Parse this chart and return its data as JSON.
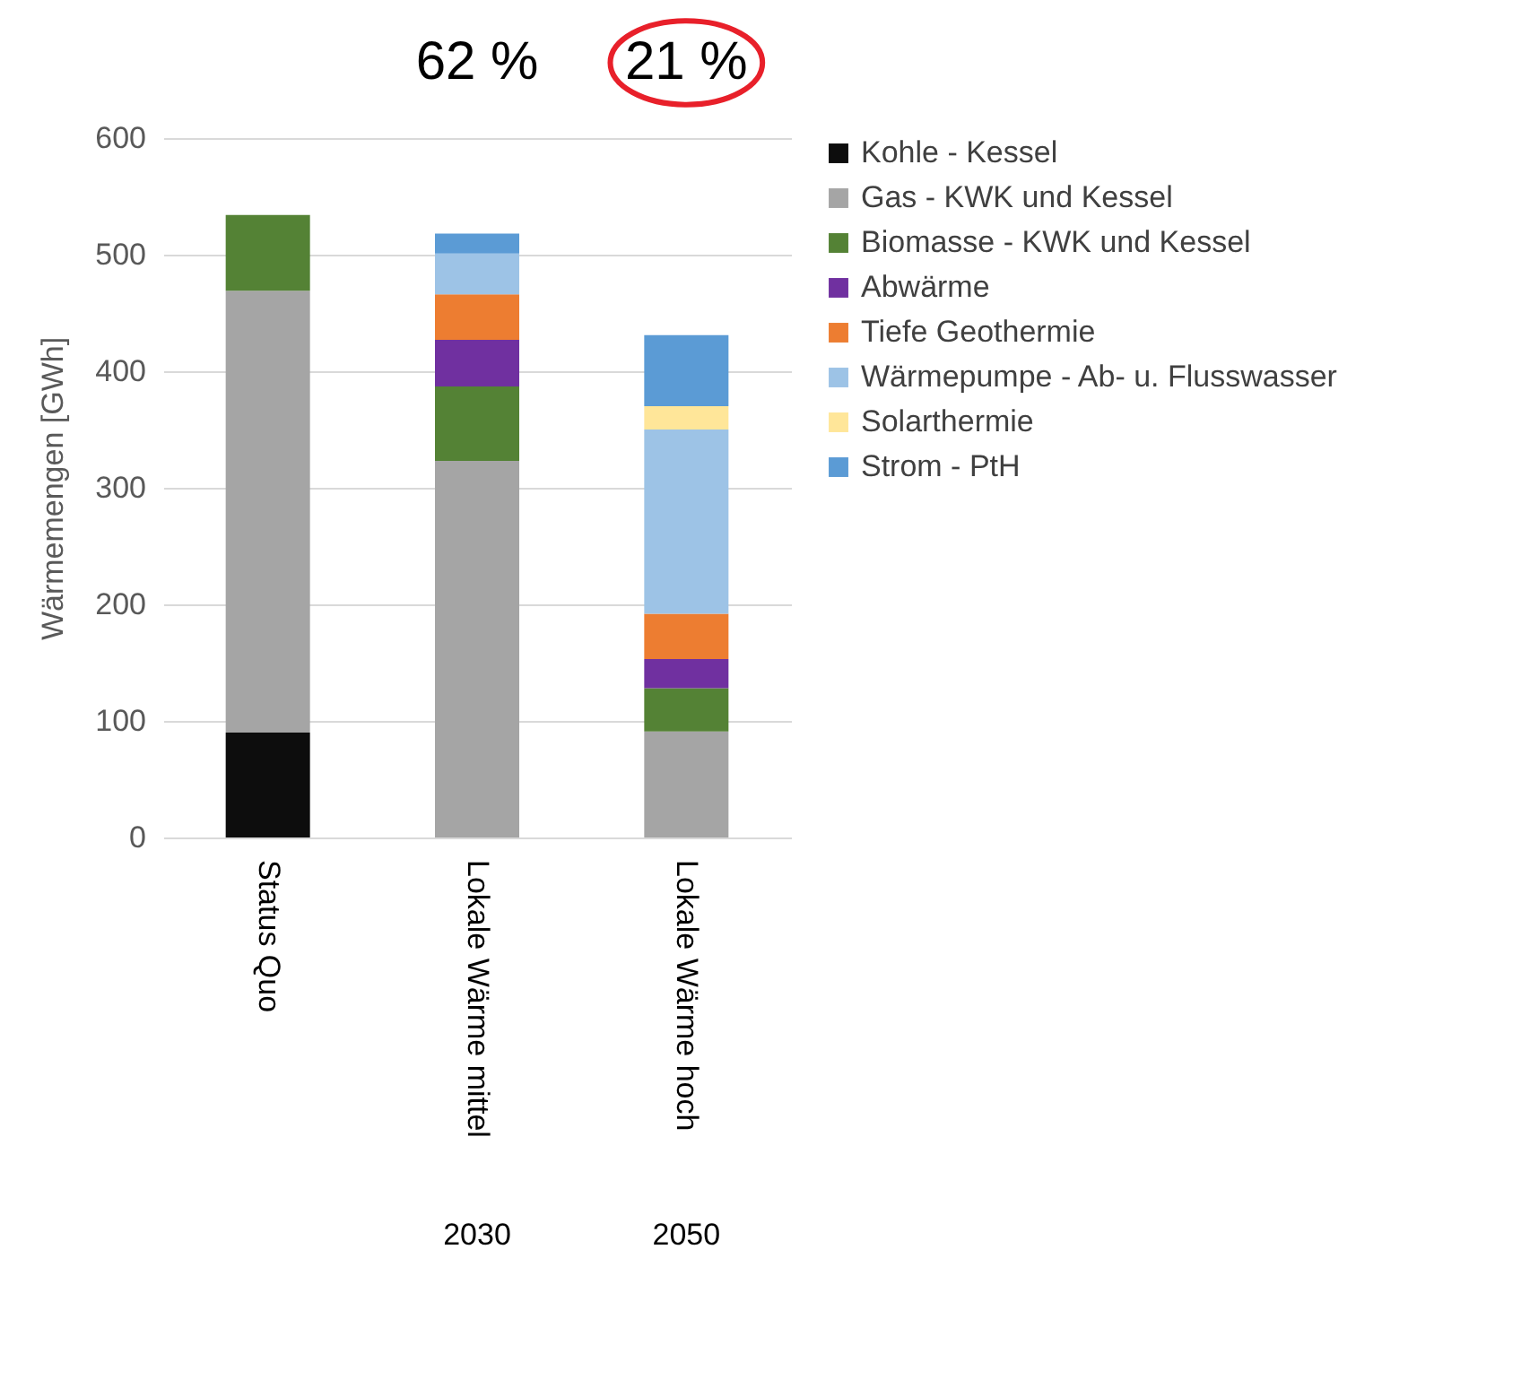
{
  "chart_data": {
    "type": "bar",
    "stacked": true,
    "ylabel": "Wärmemengen [GWh]",
    "categories": [
      "Status Quo",
      "Lokale Wärme mittel",
      "Lokale Wärme hoch"
    ],
    "series": [
      {
        "name": "Kohle - Kessel",
        "color": "#0d0d0d",
        "values": [
          90,
          0,
          0
        ]
      },
      {
        "name": "Gas - KWK und Kessel",
        "color": "#a5a5a5",
        "values": [
          379,
          323,
          91
        ]
      },
      {
        "name": "Biomasse - KWK und Kessel",
        "color": "#548235",
        "values": [
          65,
          64,
          37
        ]
      },
      {
        "name": "Abwärme",
        "color": "#7030a0",
        "values": [
          0,
          40,
          25
        ]
      },
      {
        "name": "Tiefe Geothermie",
        "color": "#ed7d31",
        "values": [
          0,
          39,
          39
        ]
      },
      {
        "name": "Wärmepumpe - Ab- u. Flusswasser",
        "color": "#9dc3e6",
        "values": [
          0,
          35,
          158
        ]
      },
      {
        "name": "Solarthermie",
        "color": "#ffe699",
        "values": [
          0,
          0,
          20
        ]
      },
      {
        "name": "Strom - PtH",
        "color": "#5b9bd5",
        "values": [
          0,
          17,
          61
        ]
      }
    ],
    "ylim": [
      0,
      600
    ],
    "yticks": [
      0,
      100,
      200,
      300,
      400,
      500,
      600
    ],
    "grid": "y",
    "legend": "top right",
    "annotations": [
      "62 %",
      "21 %",
      "2030",
      "2050"
    ]
  }
}
